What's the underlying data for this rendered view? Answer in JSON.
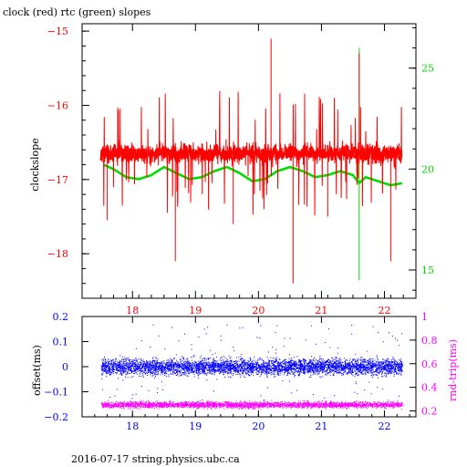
{
  "header": {
    "title": "clock (red) rtc (green) slopes"
  },
  "footer": {
    "caption": "2016-07-17 string.physics.ubc.ca"
  },
  "colors": {
    "red": "#ff0000",
    "green": "#00dd00",
    "blue": "#0000ff",
    "magenta": "#ff00ff",
    "axis": "#000000"
  },
  "chart_data": [
    {
      "type": "line",
      "title": "clock (red) rtc (green) slopes",
      "xlabel": "",
      "ylabel": "clockslope",
      "xlim": [
        17.2,
        22.5
      ],
      "ylim": [
        -18.6,
        -14.9
      ],
      "y2lim": [
        13.6,
        27.2
      ],
      "xticks": [
        18,
        19,
        20,
        21,
        22
      ],
      "yticks": [
        -18,
        -17,
        -16,
        -15
      ],
      "y2ticks": [
        15,
        20,
        25
      ],
      "series": [
        {
          "color": "red",
          "axis": "left",
          "description": "dense noisy line, baseline near -16.65, band +/-0.25, spikes to about -15.1 and -18.4",
          "baseline": -16.65,
          "band": 0.25,
          "x_range": [
            17.5,
            22.28
          ],
          "spikes": [
            {
              "x": 17.6,
              "y": -17.55
            },
            {
              "x": 18.68,
              "y": -18.1
            },
            {
              "x": 19.6,
              "y": -17.6
            },
            {
              "x": 20.2,
              "y": -15.1
            },
            {
              "x": 20.55,
              "y": -18.4
            },
            {
              "x": 21.1,
              "y": -17.5
            },
            {
              "x": 21.6,
              "y": -15.3
            },
            {
              "x": 22.1,
              "y": -18.1
            }
          ]
        },
        {
          "color": "green",
          "axis": "right",
          "description": "smooth oscillating line near 19.8 with small wiggles; one spike 26 to 14.5 near x=21.6",
          "points": [
            [
              17.55,
              20.2
            ],
            [
              17.7,
              20.0
            ],
            [
              17.9,
              19.6
            ],
            [
              18.1,
              19.5
            ],
            [
              18.3,
              19.7
            ],
            [
              18.5,
              20.1
            ],
            [
              18.7,
              19.8
            ],
            [
              18.9,
              19.5
            ],
            [
              19.1,
              19.6
            ],
            [
              19.3,
              19.9
            ],
            [
              19.5,
              20.1
            ],
            [
              19.7,
              19.8
            ],
            [
              19.9,
              19.4
            ],
            [
              20.1,
              19.5
            ],
            [
              20.3,
              19.9
            ],
            [
              20.5,
              20.1
            ],
            [
              20.7,
              19.9
            ],
            [
              20.9,
              19.6
            ],
            [
              21.1,
              19.7
            ],
            [
              21.3,
              19.9
            ],
            [
              21.5,
              19.7
            ],
            [
              21.6,
              19.3
            ],
            [
              21.7,
              19.6
            ],
            [
              21.9,
              19.4
            ],
            [
              22.1,
              19.2
            ],
            [
              22.28,
              19.3
            ]
          ],
          "spike": {
            "x": 21.6,
            "top": 26.0,
            "bottom": 14.5
          }
        }
      ]
    },
    {
      "type": "scatter",
      "title": "",
      "xlabel": "",
      "ylabel": "offset(ms)",
      "y2label": "rnd-trip(ms)",
      "xlim": [
        17.2,
        22.5
      ],
      "ylim": [
        -0.2,
        0.2
      ],
      "y2lim": [
        0.15,
        1.0
      ],
      "xticks": [
        18,
        19,
        20,
        21,
        22
      ],
      "yticks": [
        0.2,
        0.1,
        0,
        -0.1,
        -0.2
      ],
      "y2ticks": [
        1,
        0.8,
        0.6,
        0.4,
        0.2
      ],
      "series": [
        {
          "color": "blue",
          "axis": "left",
          "x_range": [
            17.5,
            22.28
          ],
          "y_center": 0.0,
          "y_spread": 0.03,
          "outliers_range": [
            -0.15,
            0.17
          ]
        },
        {
          "color": "magenta",
          "axis": "right",
          "x_range": [
            17.5,
            22.28
          ],
          "y_center": 0.255,
          "y_spread": 0.025
        }
      ]
    }
  ]
}
